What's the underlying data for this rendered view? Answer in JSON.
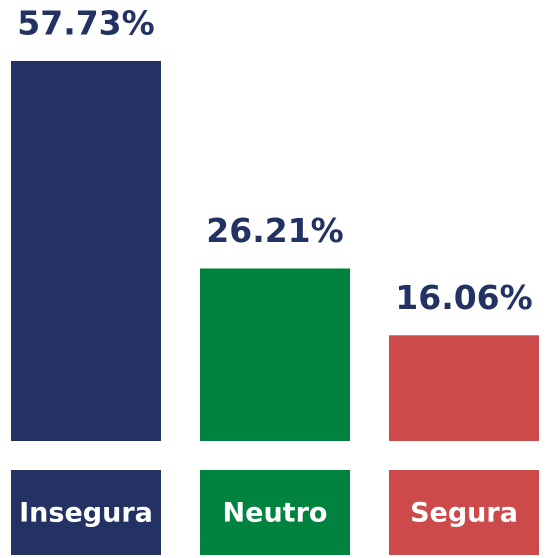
{
  "chart_data": {
    "type": "bar",
    "categories": [
      "Insegura",
      "Neutro",
      "Segura"
    ],
    "values": [
      57.73,
      26.21,
      16.06
    ],
    "value_labels": [
      "57.73%",
      "26.21%",
      "16.06%"
    ],
    "colors": [
      "#233263",
      "#00833f",
      "#cc4a4a"
    ],
    "label_color": "#233263"
  }
}
